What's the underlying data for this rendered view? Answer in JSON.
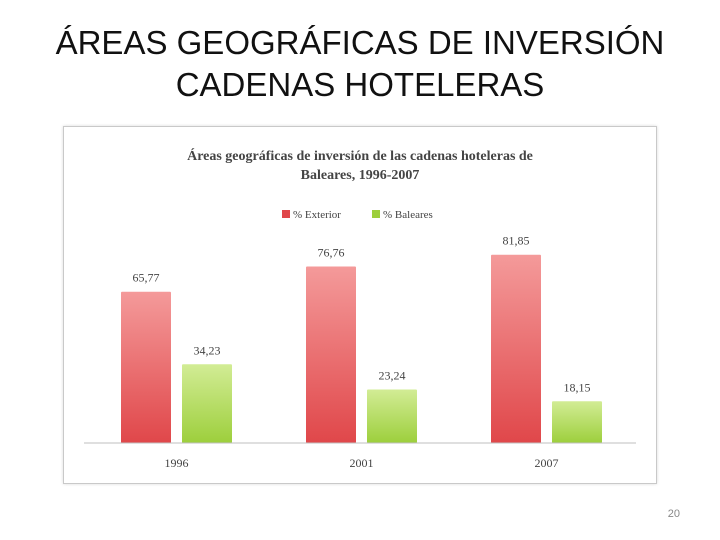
{
  "slide": {
    "title_line1": "ÁREAS GEOGRÁFICAS DE INVERSIÓN",
    "title_line2": "CADENAS HOTELERAS",
    "page_number": "20"
  },
  "colors": {
    "exterior": "#e0474a",
    "exterior_light": "#f49a9a",
    "baleares": "#9dcf3c",
    "baleares_light": "#d2ec95",
    "axis": "#bfbfbf",
    "text": "#444444"
  },
  "chart_data": {
    "type": "bar",
    "title_line1": "Áreas geográficas de inversión de las cadenas hoteleras de",
    "title_line2": "Baleares, 1996-2007",
    "categories": [
      "1996",
      "2001",
      "2007"
    ],
    "series": [
      {
        "name": "% Exterior",
        "values": [
          65.77,
          76.76,
          81.85
        ],
        "labels": [
          "65,77",
          "76,76",
          "81,85"
        ]
      },
      {
        "name": "% Baleares",
        "values": [
          34.23,
          23.24,
          18.15
        ],
        "labels": [
          "34,23",
          "23,24",
          "18,15"
        ]
      }
    ],
    "ylim": [
      0,
      100
    ],
    "legend_position": "top-center",
    "grid": false
  }
}
